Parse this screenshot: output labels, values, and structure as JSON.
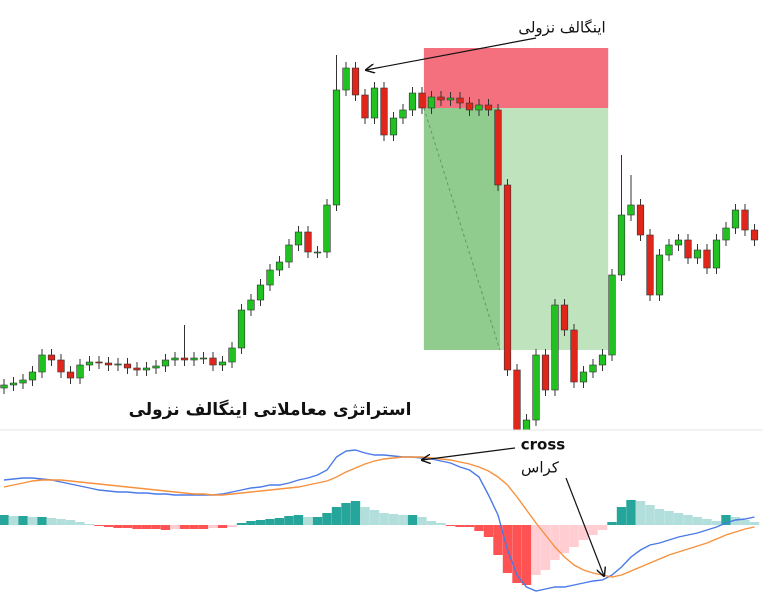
{
  "chart_data": {
    "type": "candlestick",
    "annotation_top": "اینگالف نزولی",
    "title": "استراتژی معاملاتی اینگالف نزولی",
    "annotation_cross_en": "cross",
    "annotation_cross_fa": "کراس",
    "up_color": "#22c122",
    "down_color": "#e0261b",
    "ylim": [
      0,
      430
    ],
    "open": [
      42,
      45,
      47,
      50,
      58,
      75,
      70,
      58,
      52,
      65,
      68,
      67,
      65,
      66,
      62,
      60,
      62,
      64,
      70,
      72,
      70,
      72,
      72,
      65,
      68,
      82,
      120,
      130,
      145,
      160,
      168,
      185,
      198,
      178,
      178,
      225,
      340,
      362,
      335,
      312,
      342,
      295,
      312,
      320,
      337,
      322,
      333,
      330,
      332,
      327,
      320,
      325,
      320,
      245,
      60,
      0,
      10,
      75,
      40,
      125,
      100,
      48,
      58,
      65,
      75,
      155,
      215,
      225,
      195,
      135,
      175,
      185,
      190,
      172,
      180,
      162,
      190,
      202,
      220,
      200
    ],
    "high": [
      51,
      53,
      56,
      64,
      81,
      81,
      76,
      64,
      71,
      74,
      74,
      73,
      72,
      72,
      68,
      68,
      70,
      76,
      78,
      105,
      78,
      78,
      78,
      74,
      88,
      126,
      136,
      151,
      166,
      174,
      191,
      204,
      204,
      184,
      231,
      375,
      368,
      368,
      341,
      348,
      348,
      318,
      326,
      343,
      343,
      339,
      339,
      338,
      338,
      333,
      331,
      331,
      326,
      251,
      66,
      16,
      81,
      81,
      131,
      131,
      106,
      64,
      71,
      81,
      161,
      275,
      255,
      231,
      201,
      181,
      191,
      196,
      196,
      186,
      186,
      196,
      208,
      226,
      226,
      206
    ],
    "low": [
      36,
      39,
      41,
      44,
      52,
      64,
      52,
      46,
      46,
      59,
      61,
      59,
      59,
      56,
      54,
      54,
      56,
      58,
      64,
      64,
      64,
      66,
      59,
      59,
      62,
      76,
      114,
      124,
      139,
      154,
      162,
      179,
      172,
      172,
      172,
      219,
      334,
      329,
      306,
      306,
      289,
      289,
      306,
      314,
      316,
      316,
      324,
      324,
      321,
      314,
      314,
      314,
      239,
      54,
      -10,
      -6,
      4,
      34,
      34,
      94,
      42,
      42,
      52,
      59,
      69,
      149,
      209,
      189,
      129,
      129,
      169,
      179,
      166,
      166,
      156,
      156,
      184,
      196,
      194,
      184
    ],
    "close": [
      45,
      47,
      50,
      58,
      75,
      70,
      58,
      52,
      65,
      68,
      67,
      65,
      66,
      62,
      60,
      62,
      64,
      70,
      72,
      70,
      72,
      72,
      65,
      68,
      82,
      120,
      130,
      145,
      160,
      168,
      185,
      198,
      178,
      178,
      225,
      340,
      362,
      335,
      312,
      342,
      295,
      312,
      320,
      337,
      322,
      333,
      330,
      332,
      327,
      320,
      325,
      320,
      245,
      60,
      0,
      10,
      75,
      40,
      125,
      100,
      48,
      58,
      65,
      75,
      155,
      215,
      225,
      195,
      135,
      175,
      185,
      190,
      172,
      180,
      162,
      190,
      202,
      220,
      200,
      190
    ],
    "zones": {
      "start": 44.2,
      "end": 63.6,
      "entry": 322,
      "stop": 382,
      "target": 80,
      "target_reached": 52.2,
      "stop_color": "#f4707e",
      "target_color": "#bfe3bd",
      "filled_color": "#8fcc8e"
    },
    "macd": {
      "ylim": [
        -75,
        95
      ],
      "histogram": [
        10,
        9,
        9,
        8,
        8,
        7,
        6,
        5,
        3,
        1,
        -1,
        -2,
        -3,
        -3,
        -4,
        -4,
        -4,
        -5,
        -4,
        -4,
        -4,
        -4,
        -3,
        -3,
        -2,
        2,
        4,
        5,
        6,
        7,
        9,
        10,
        8,
        8,
        12,
        18,
        22,
        24,
        18,
        15,
        12,
        11,
        10,
        10,
        8,
        4,
        2,
        -1,
        -2,
        -2,
        -6,
        -12,
        -30,
        -48,
        -58,
        -60,
        -50,
        -45,
        -35,
        -28,
        -22,
        -15,
        -10,
        -5,
        3,
        18,
        25,
        24,
        20,
        16,
        14,
        12,
        10,
        8,
        6,
        4,
        10,
        8,
        5,
        3
      ],
      "hist_colors": {
        "up_strong": "#26a69a",
        "up_weak": "#b2dfdb",
        "down_strong": "#ff5252",
        "down_weak": "#ffcdd2"
      },
      "series": [
        {
          "color": "#4a7ae8",
          "values": [
            45,
            46,
            47,
            47,
            46,
            45,
            43,
            41,
            39,
            37,
            35,
            34,
            33,
            33,
            32,
            32,
            31,
            31,
            30,
            30,
            30,
            30,
            30,
            31,
            33,
            35,
            37,
            38,
            40,
            40,
            42,
            45,
            47,
            50,
            55,
            68,
            74,
            75,
            72,
            70,
            70,
            69,
            68,
            68,
            67,
            66,
            64,
            62,
            58,
            55,
            48,
            30,
            10,
            -25,
            -50,
            -62,
            -66,
            -64,
            -62,
            -62,
            -60,
            -58,
            -56,
            -55,
            -50,
            -42,
            -32,
            -25,
            -20,
            -18,
            -15,
            -12,
            -10,
            -8,
            -5,
            -2,
            2,
            5,
            6,
            8
          ]
        },
        {
          "color": "#f7913d",
          "values": [
            38,
            40,
            42,
            44,
            45,
            45,
            45,
            44,
            43,
            42,
            41,
            40,
            39,
            38,
            37,
            36,
            35,
            34,
            33,
            32,
            31,
            31,
            30,
            30,
            31,
            32,
            33,
            34,
            35,
            36,
            37,
            38,
            40,
            42,
            44,
            48,
            53,
            57,
            61,
            64,
            66,
            67,
            68,
            68,
            68,
            67,
            66,
            65,
            63,
            61,
            58,
            54,
            48,
            40,
            28,
            15,
            2,
            -10,
            -22,
            -32,
            -40,
            -45,
            -48,
            -50,
            -52,
            -50,
            -46,
            -42,
            -38,
            -34,
            -30,
            -27,
            -24,
            -21,
            -18,
            -14,
            -10,
            -7,
            -4,
            -2
          ]
        }
      ]
    }
  }
}
